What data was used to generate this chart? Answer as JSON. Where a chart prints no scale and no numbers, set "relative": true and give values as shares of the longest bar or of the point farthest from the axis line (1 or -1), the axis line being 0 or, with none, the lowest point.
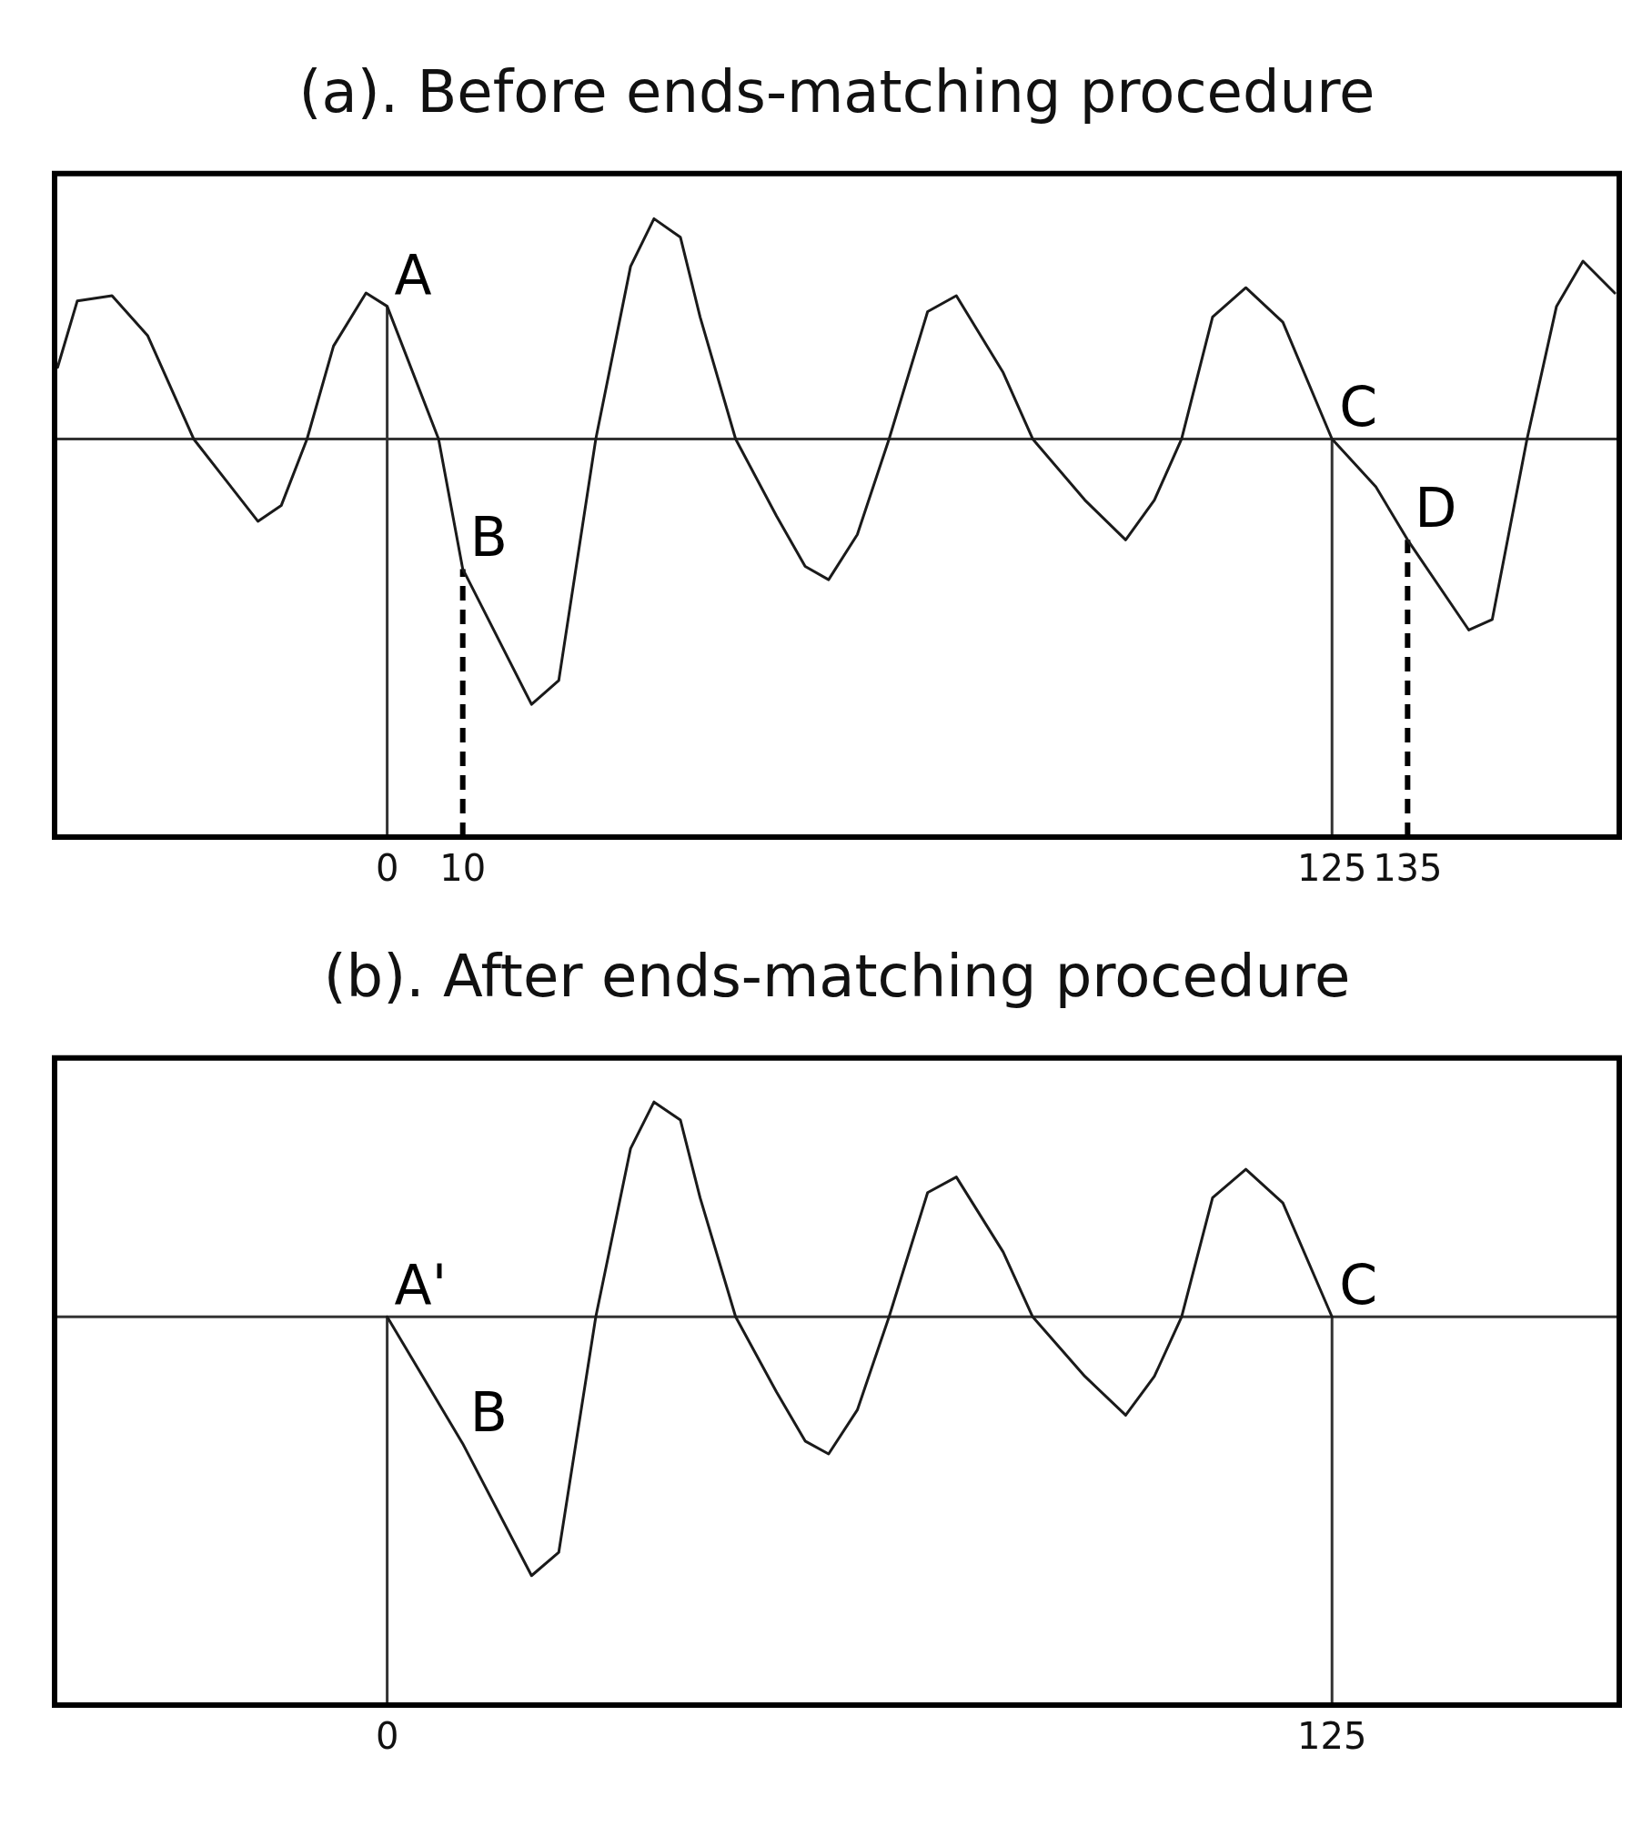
{
  "chart_data": [
    {
      "type": "line",
      "title": "(a). Before ends-matching procedure",
      "relative": true,
      "xlim": [
        -44,
        163
      ],
      "xticks": [
        0,
        10,
        125,
        135
      ],
      "x": [
        -43.6,
        -41,
        -36.4,
        -31.7,
        -25.6,
        -17.1,
        -14,
        -10.6,
        -7.1,
        -2.8,
        0,
        6.8,
        10,
        19.1,
        22.7,
        27.6,
        32.2,
        35.3,
        38.8,
        41.4,
        46.1,
        51.5,
        55.3,
        58.4,
        62.2,
        66.4,
        71.5,
        75.3,
        81.5,
        85.4,
        92.3,
        97.7,
        101.5,
        105.1,
        109.2,
        113.6,
        118.5,
        125,
        130.8,
        135,
        143.1,
        146.2,
        150.8,
        154.7,
        158.2,
        162.4
      ],
      "series": [
        {
          "color": "#1a1a1a",
          "values": [
            0.27,
            0.52,
            0.54,
            0.39,
            0,
            -0.31,
            -0.25,
            0,
            0.35,
            0.55,
            0.5,
            0,
            -0.49,
            -1,
            -0.91,
            0,
            0.65,
            0.83,
            0.76,
            0.46,
            0,
            -0.29,
            -0.48,
            -0.53,
            -0.36,
            0,
            0.48,
            0.54,
            0.25,
            0,
            -0.23,
            -0.38,
            -0.23,
            0,
            0.46,
            0.57,
            0.44,
            0,
            -0.18,
            -0.38,
            -0.72,
            -0.68,
            0,
            0.5,
            0.67,
            0.55
          ]
        }
      ],
      "ref_lines": [
        {
          "axis": "y",
          "value": 0,
          "color": "#333333"
        },
        {
          "axis": "x",
          "value": 0,
          "color": "#333333"
        },
        {
          "axis": "x",
          "value": 10,
          "color": "#000000",
          "line_style": "dashed"
        },
        {
          "axis": "x",
          "value": 125,
          "color": "#333333"
        },
        {
          "axis": "x",
          "value": 135,
          "color": "#000000",
          "line_style": "dashed"
        }
      ],
      "annotations": [
        {
          "text": "A",
          "x": 0,
          "y": 0.5
        },
        {
          "text": "B",
          "x": 10,
          "y": -0.49
        },
        {
          "text": "C",
          "x": 125,
          "y": 0
        },
        {
          "text": "D",
          "x": 135,
          "y": -0.38
        }
      ]
    },
    {
      "type": "line",
      "title": "(b). After ends-matching procedure",
      "relative": true,
      "xlim": [
        -44,
        163
      ],
      "xticks": [
        0,
        125
      ],
      "x": [
        0,
        10,
        19.1,
        22.7,
        27.6,
        32.2,
        35.3,
        38.8,
        41.4,
        46.1,
        51.5,
        55.3,
        58.4,
        62.2,
        66.4,
        71.5,
        75.3,
        81.5,
        85.4,
        92.3,
        97.7,
        101.5,
        105.1,
        109.2,
        113.6,
        118.5,
        125
      ],
      "series": [
        {
          "color": "#1a1a1a",
          "values": [
            0,
            -0.49,
            -1,
            -0.91,
            0,
            0.65,
            0.83,
            0.76,
            0.46,
            0,
            -0.29,
            -0.48,
            -0.53,
            -0.36,
            0,
            0.48,
            0.54,
            0.25,
            0,
            -0.23,
            -0.38,
            -0.23,
            0,
            0.46,
            0.57,
            0.44,
            0
          ]
        }
      ],
      "ref_lines": [
        {
          "axis": "y",
          "value": 0,
          "color": "#333333"
        },
        {
          "axis": "x",
          "value": 0,
          "color": "#333333"
        },
        {
          "axis": "x",
          "value": 125,
          "color": "#333333"
        }
      ],
      "annotations": [
        {
          "text": "A'",
          "x": 0,
          "y": 0
        },
        {
          "text": "B",
          "x": 10,
          "y": -0.49
        },
        {
          "text": "C",
          "x": 125,
          "y": 0
        }
      ]
    }
  ]
}
